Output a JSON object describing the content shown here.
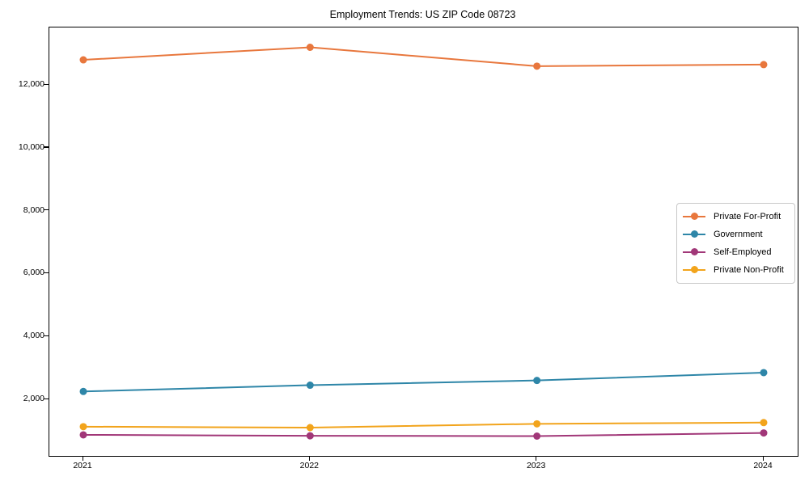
{
  "title": "Employment Trends: US ZIP Code 08723",
  "chart_data": {
    "type": "line",
    "title": "Employment Trends: US ZIP Code 08723",
    "categories": [
      "2021",
      "2022",
      "2023",
      "2024"
    ],
    "series": [
      {
        "name": "Private For-Profit",
        "color": "#e8773d",
        "values": [
          12800,
          13200,
          12600,
          12650
        ]
      },
      {
        "name": "Government",
        "color": "#2e86a8",
        "values": [
          2250,
          2450,
          2600,
          2850
        ]
      },
      {
        "name": "Self-Employed",
        "color": "#a13778",
        "values": [
          870,
          840,
          830,
          930
        ]
      },
      {
        "name": "Private Non-Profit",
        "color": "#f2a41c",
        "values": [
          1130,
          1100,
          1220,
          1260
        ]
      }
    ],
    "xlabel": "",
    "ylabel": "",
    "ylim": [
      200,
      13830
    ],
    "yticks": [
      2000,
      4000,
      6000,
      8000,
      10000,
      12000
    ],
    "ytick_labels": [
      "2,000",
      "4,000",
      "6,000",
      "8,000",
      "10,000",
      "12,000"
    ],
    "grid": false,
    "legend_position": "center-right",
    "marker": "circle",
    "background_color": "#ffffff",
    "axes_edge_color": "#000000"
  }
}
